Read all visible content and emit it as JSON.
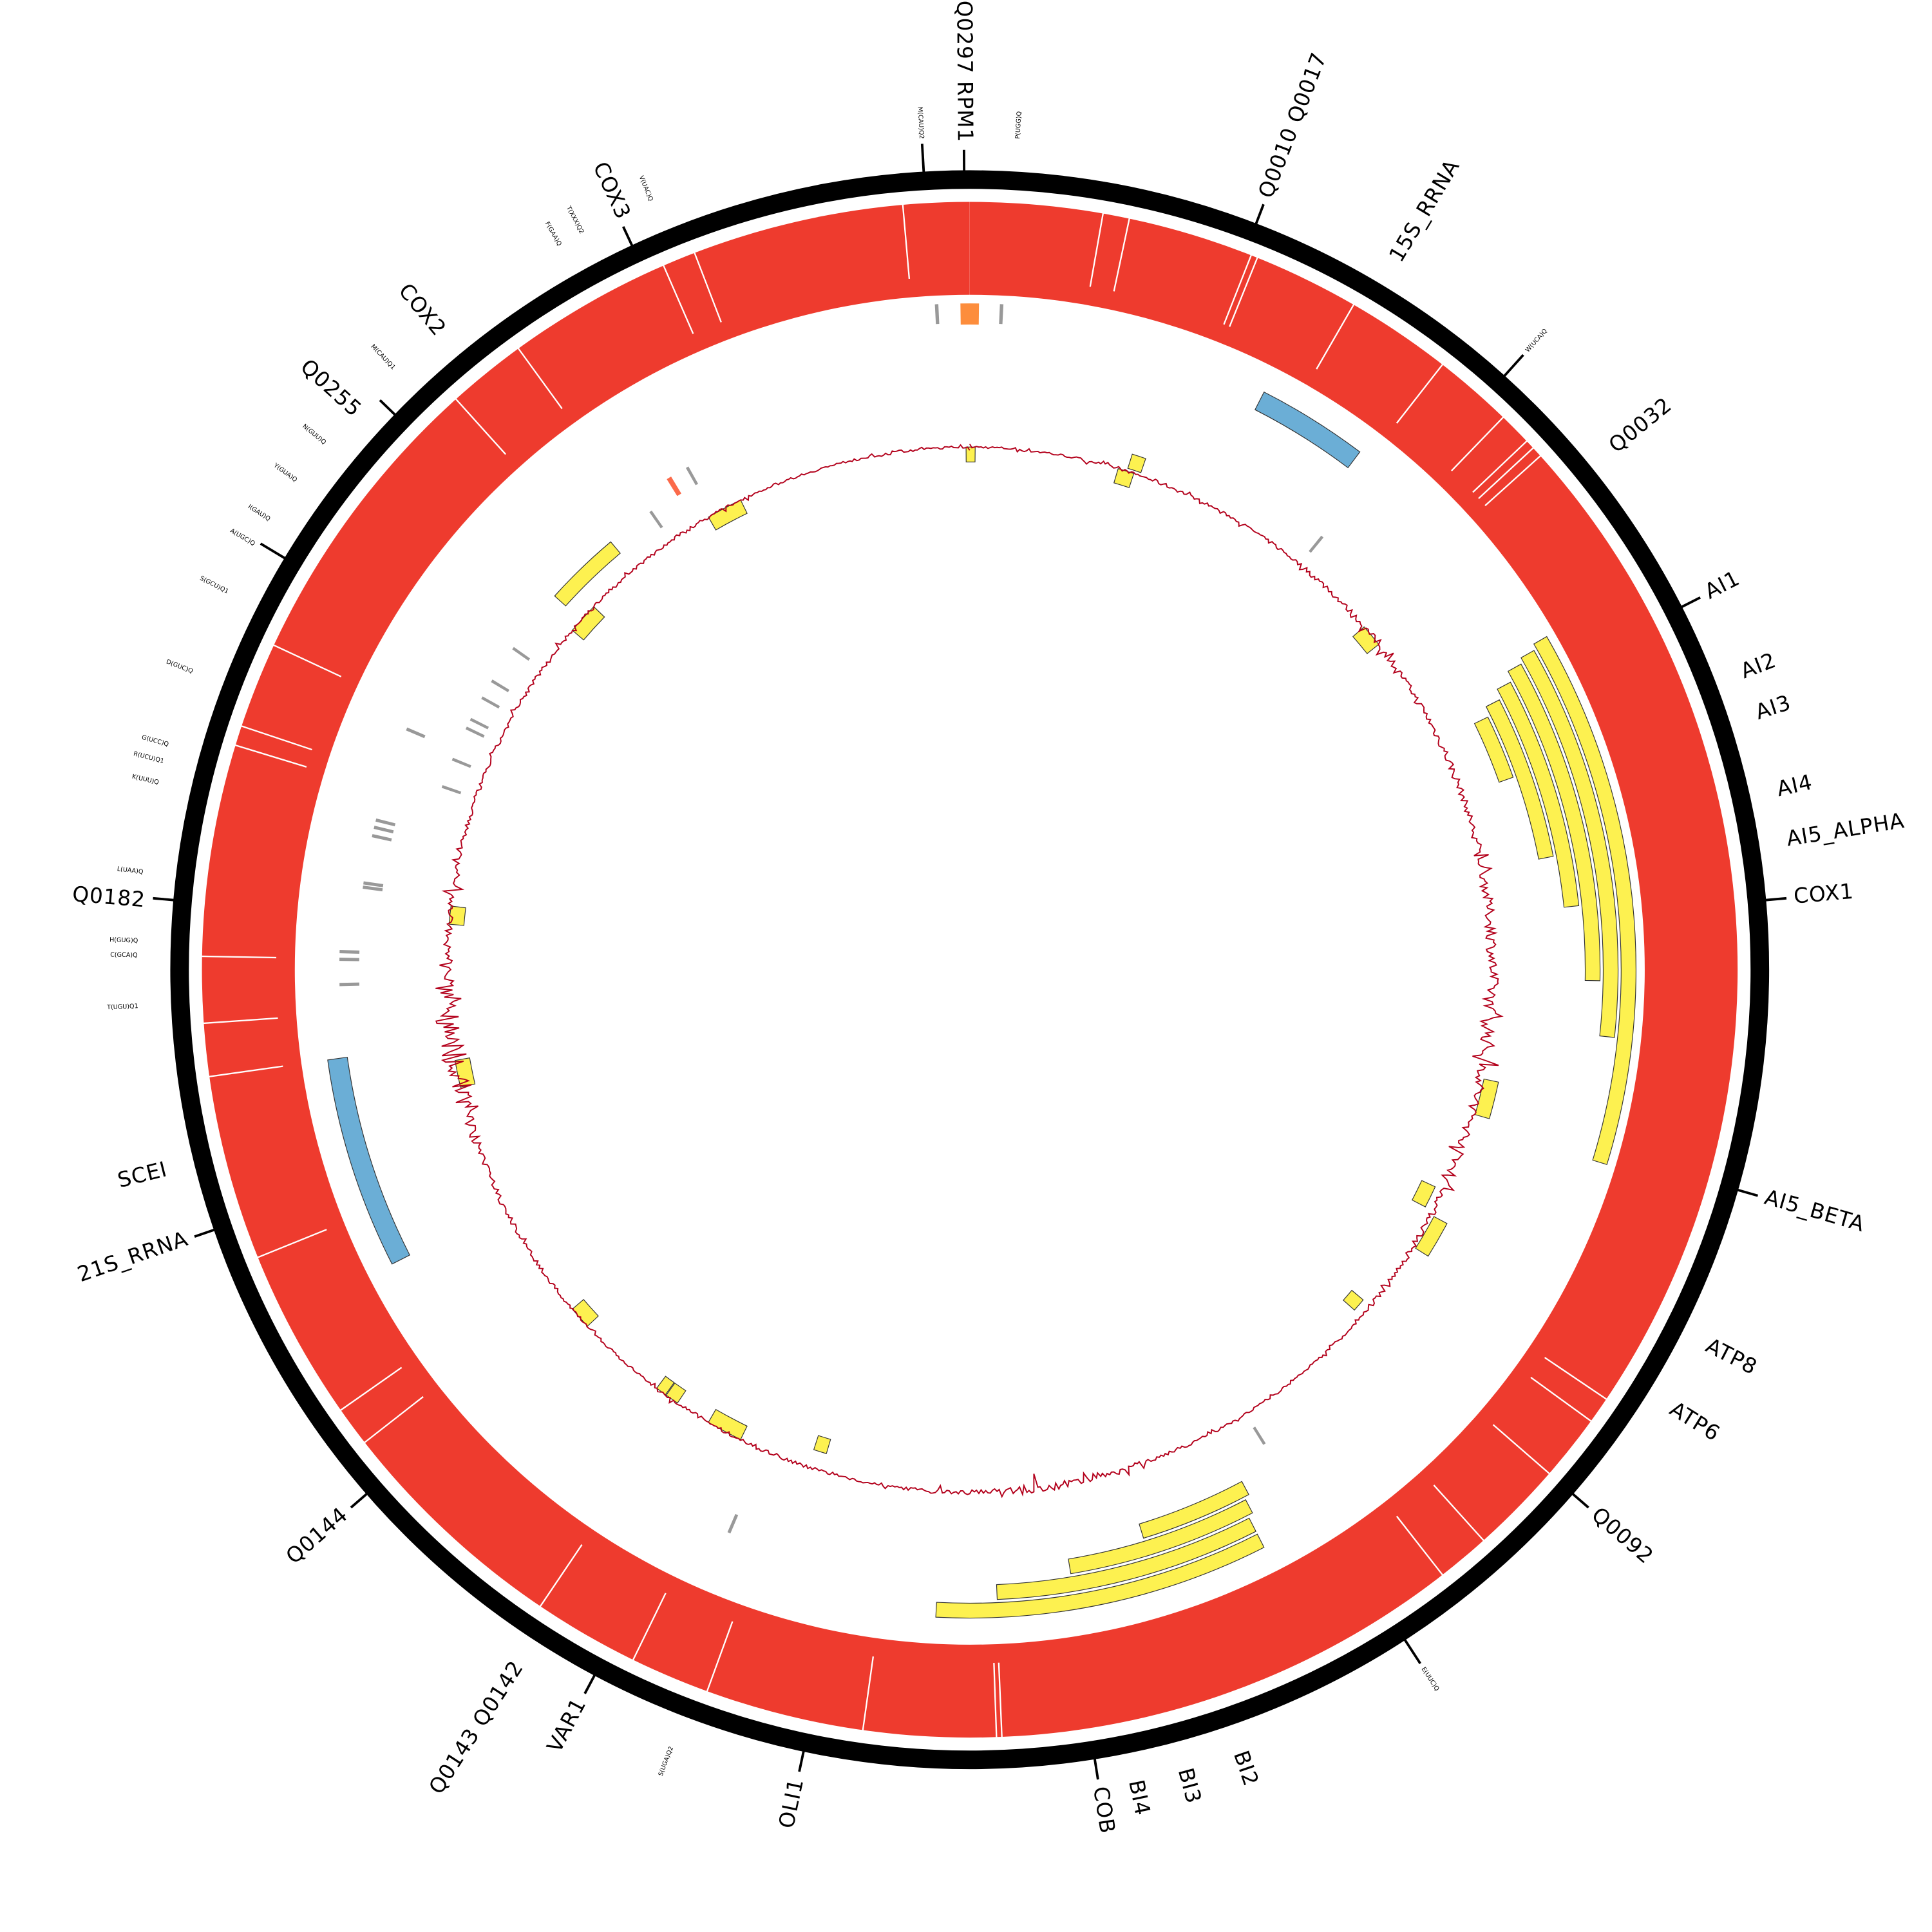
{
  "chart_data": {
    "type": "circular-genome-map",
    "angle_units": "degrees clockwise from top",
    "colors": {
      "ring": "#000000",
      "coverage": "#ee3b2e",
      "exon": "#fdf150",
      "rrna": "#6baed6",
      "trna": "#999999",
      "orange_feature": "#fd8d3c",
      "red_feature": "#fb6a4a",
      "gc_line": "#b3001b"
    },
    "gene_labels": [
      {
        "text": "Q0297  RPM1",
        "angle": 359.6,
        "tick": true
      },
      {
        "text": "Q0010  Q0017",
        "angle": 21,
        "tick": true
      },
      {
        "text": "15S_RRNA",
        "angle": 31,
        "tick": false
      },
      {
        "text": "Q0032",
        "angle": 51,
        "tick": false
      },
      {
        "text": "AI1",
        "angle": 63,
        "tick": true
      },
      {
        "text": "AI2",
        "angle": 69,
        "tick": false
      },
      {
        "text": "AI3",
        "angle": 72,
        "tick": false
      },
      {
        "text": "AI4",
        "angle": 77.5,
        "tick": false
      },
      {
        "text": "AI5_ALPHA",
        "angle": 81,
        "tick": false
      },
      {
        "text": "COX1",
        "angle": 85,
        "tick": true
      },
      {
        "text": "AI5_BETA",
        "angle": 106,
        "tick": true
      },
      {
        "text": "ATP8",
        "angle": 117,
        "tick": false
      },
      {
        "text": "ATP6",
        "angle": 122,
        "tick": false
      },
      {
        "text": "Q0092",
        "angle": 131,
        "tick": true
      },
      {
        "text": "BI2",
        "angle": 161,
        "tick": false
      },
      {
        "text": "BI3",
        "angle": 165,
        "tick": false
      },
      {
        "text": "BI4",
        "angle": 168.5,
        "tick": false
      },
      {
        "text": "COB",
        "angle": 171,
        "tick": true
      },
      {
        "text": "OLI1",
        "angle": 192,
        "tick": true
      },
      {
        "text": "VAR1",
        "angle": 208,
        "tick": true
      },
      {
        "text": "Q0143  Q0142",
        "angle": 213,
        "tick": false
      },
      {
        "text": "Q0144",
        "angle": 229,
        "tick": true
      },
      {
        "text": "21S_RRNA",
        "angle": 251,
        "tick": true
      },
      {
        "text": "SCEI",
        "angle": 256,
        "tick": false
      },
      {
        "text": "Q0182",
        "angle": 275,
        "tick": true
      },
      {
        "text": "COX2",
        "angle": 317,
        "tick": false
      },
      {
        "text": "Q0255",
        "angle": 314,
        "tick": true
      },
      {
        "text": "COX3",
        "angle": 335,
        "tick": true
      }
    ],
    "trna_labels": [
      {
        "text": "M(CAU)Q2",
        "angle": 356.7,
        "tick": true
      },
      {
        "text": "P(UGG)Q",
        "angle": 3.3,
        "tick": false
      },
      {
        "text": "W(UCA)Q",
        "angle": 42,
        "tick": true
      },
      {
        "text": "E(UUC)Q",
        "angle": 147,
        "tick": true
      },
      {
        "text": "S(UGA)Q2",
        "angle": 201,
        "tick": false
      },
      {
        "text": "T(UGU)Q1",
        "angle": 267.5,
        "tick": false
      },
      {
        "text": "C(GCA)Q",
        "angle": 271,
        "tick": false
      },
      {
        "text": "H(GUG)Q",
        "angle": 272,
        "tick": false
      },
      {
        "text": "L(UAA)Q",
        "angle": 276.5,
        "tick": false
      },
      {
        "text": "K(UUU)Q",
        "angle": 283,
        "tick": false
      },
      {
        "text": "R(UCU)Q1",
        "angle": 284.5,
        "tick": false
      },
      {
        "text": "G(UCC)Q",
        "angle": 285.7,
        "tick": false
      },
      {
        "text": "D(GUC)Q",
        "angle": 291,
        "tick": false
      },
      {
        "text": "S(GCU)Q1",
        "angle": 297,
        "tick": false
      },
      {
        "text": "A(UGC)Q",
        "angle": 301,
        "tick": true
      },
      {
        "text": "I(GAU)Q",
        "angle": 302.5,
        "tick": false
      },
      {
        "text": "Y(GUA)Q",
        "angle": 306,
        "tick": false
      },
      {
        "text": "N(GUU)Q",
        "angle": 310,
        "tick": false
      },
      {
        "text": "M(CAU)Q1",
        "angle": 317,
        "tick": false
      },
      {
        "text": "F(GAA)Q",
        "angle": 331,
        "tick": false
      },
      {
        "text": "T(XXX)Q2",
        "angle": 333.5,
        "tick": false
      },
      {
        "text": "V(UAC)Q",
        "angle": 336,
        "tick": false
      }
    ],
    "coverage_gaps": [
      21.5,
      22,
      30,
      38,
      44,
      46.5,
      47.2,
      48,
      12,
      10,
      355,
      339,
      336.5,
      178,
      177.6,
      188,
      200,
      206,
      214,
      232,
      235,
      248,
      262,
      266,
      271,
      287,
      288.5,
      295,
      318,
      324,
      124,
      126,
      131,
      138,
      142
    ],
    "features": [
      {
        "kind": "exon",
        "start": 60,
        "end": 107,
        "lane": 0
      },
      {
        "kind": "exon",
        "start": 60.5,
        "end": 96,
        "lane": 1
      },
      {
        "kind": "exon",
        "start": 61,
        "end": 91,
        "lane": 2
      },
      {
        "kind": "exon",
        "start": 62,
        "end": 84,
        "lane": 3
      },
      {
        "kind": "exon",
        "start": 63,
        "end": 79,
        "lane": 4
      },
      {
        "kind": "exon",
        "start": 64,
        "end": 70.5,
        "lane": 5
      },
      {
        "kind": "exon",
        "start": 153,
        "end": 183,
        "lane": 1
      },
      {
        "kind": "exon",
        "start": 153,
        "end": 177.5,
        "lane": 2
      },
      {
        "kind": "exon",
        "start": 152.5,
        "end": 170.5,
        "lane": 3
      },
      {
        "kind": "exon",
        "start": 152,
        "end": 163,
        "lane": 4
      },
      {
        "kind": "exon",
        "start": -0.4,
        "end": 0.6,
        "lane": 8
      },
      {
        "kind": "exon",
        "start": 17.5,
        "end": 19,
        "lane": 7
      },
      {
        "kind": "exon",
        "start": 16.5,
        "end": 18.3,
        "lane": 8
      },
      {
        "kind": "exon",
        "start": 330,
        "end": 334,
        "lane": 8
      },
      {
        "kind": "exon",
        "start": 312,
        "end": 320,
        "lane": 6
      },
      {
        "kind": "exon",
        "start": 310.5,
        "end": 314,
        "lane": 8
      },
      {
        "kind": "exon",
        "start": 49,
        "end": 51.5,
        "lane": 8
      },
      {
        "kind": "exon",
        "start": 275,
        "end": 277,
        "lane": 8
      },
      {
        "kind": "exon",
        "start": 257,
        "end": 260,
        "lane": 8
      },
      {
        "kind": "exon",
        "start": 102,
        "end": 106,
        "lane": 7
      },
      {
        "kind": "exon",
        "start": 115,
        "end": 117.5,
        "lane": 8.5
      },
      {
        "kind": "exon",
        "start": 118,
        "end": 122,
        "lane": 7
      },
      {
        "kind": "exon",
        "start": 130,
        "end": 131.5,
        "lane": 8.5
      },
      {
        "kind": "exon",
        "start": 227,
        "end": 229.5,
        "lane": 8
      },
      {
        "kind": "exon",
        "start": 214,
        "end": 215.5,
        "lane": 8
      },
      {
        "kind": "exon",
        "start": 215.6,
        "end": 216.8,
        "lane": 8
      },
      {
        "kind": "exon",
        "start": 206,
        "end": 210,
        "lane": 8
      },
      {
        "kind": "exon",
        "start": 196.5,
        "end": 198,
        "lane": 9
      },
      {
        "kind": "rrna",
        "start": 27,
        "end": 37,
        "lane": 1
      },
      {
        "kind": "rrna",
        "start": 243,
        "end": 262,
        "lane": 1
      },
      {
        "kind": "orange",
        "start": -0.8,
        "end": 0.8,
        "lane": 0
      },
      {
        "kind": "redtick",
        "start": 328.3,
        "end": 328.8,
        "lane": 5
      },
      {
        "kind": "trna",
        "start": 357,
        "end": 357.3,
        "lane": 0
      },
      {
        "kind": "trna",
        "start": 2.6,
        "end": 2.9,
        "lane": 0
      },
      {
        "kind": "trna",
        "start": 325,
        "end": 325.3,
        "lane": 6
      },
      {
        "kind": "trna",
        "start": 330.5,
        "end": 330.8,
        "lane": 5
      },
      {
        "kind": "trna",
        "start": 39,
        "end": 39.3,
        "lane": 6
      },
      {
        "kind": "trna",
        "start": 305,
        "end": 305.3,
        "lane": 6
      },
      {
        "kind": "trna",
        "start": 301,
        "end": 301.3,
        "lane": 6
      },
      {
        "kind": "trna",
        "start": 299,
        "end": 299.3,
        "lane": 6
      },
      {
        "kind": "trna",
        "start": 296.5,
        "end": 296.8,
        "lane": 6
      },
      {
        "kind": "trna",
        "start": 295.5,
        "end": 295.8,
        "lane": 6
      },
      {
        "kind": "trna",
        "start": 293,
        "end": 293.3,
        "lane": 3
      },
      {
        "kind": "trna",
        "start": 292,
        "end": 292.3,
        "lane": 6
      },
      {
        "kind": "trna",
        "start": 289,
        "end": 289.3,
        "lane": 6
      },
      {
        "kind": "trna",
        "start": 284,
        "end": 284.3,
        "lane": 3
      },
      {
        "kind": "trna",
        "start": 283.3,
        "end": 283.6,
        "lane": 3
      },
      {
        "kind": "trna",
        "start": 282.5,
        "end": 282.8,
        "lane": 3
      },
      {
        "kind": "trna",
        "start": 278,
        "end": 278.3,
        "lane": 3
      },
      {
        "kind": "trna",
        "start": 277.6,
        "end": 277.9,
        "lane": 3
      },
      {
        "kind": "trna",
        "start": 271.5,
        "end": 271.8,
        "lane": 2
      },
      {
        "kind": "trna",
        "start": 270.8,
        "end": 271.1,
        "lane": 2
      },
      {
        "kind": "trna",
        "start": 268.5,
        "end": 268.8,
        "lane": 2
      },
      {
        "kind": "trna",
        "start": 148,
        "end": 148.3,
        "lane": 6
      },
      {
        "kind": "trna",
        "start": 203,
        "end": 203.3,
        "lane": 3
      }
    ],
    "gc_track": {
      "bin_deg": 5,
      "amplitude": [
        2,
        3,
        2,
        2,
        3,
        2,
        2,
        3,
        4,
        4,
        5,
        4,
        5,
        6,
        5,
        7,
        8,
        9,
        10,
        12,
        9,
        8,
        7,
        5,
        5,
        4,
        3,
        2,
        3,
        2,
        2,
        3,
        4,
        6,
        8,
        5,
        4,
        3,
        2,
        3,
        4,
        3,
        3,
        2,
        2,
        2,
        3,
        3,
        4,
        5,
        8,
        18,
        22,
        14,
        8,
        5,
        4,
        4,
        3,
        3,
        3,
        3,
        2,
        2,
        3,
        3,
        2,
        2,
        2,
        2,
        3,
        2
      ]
    }
  }
}
